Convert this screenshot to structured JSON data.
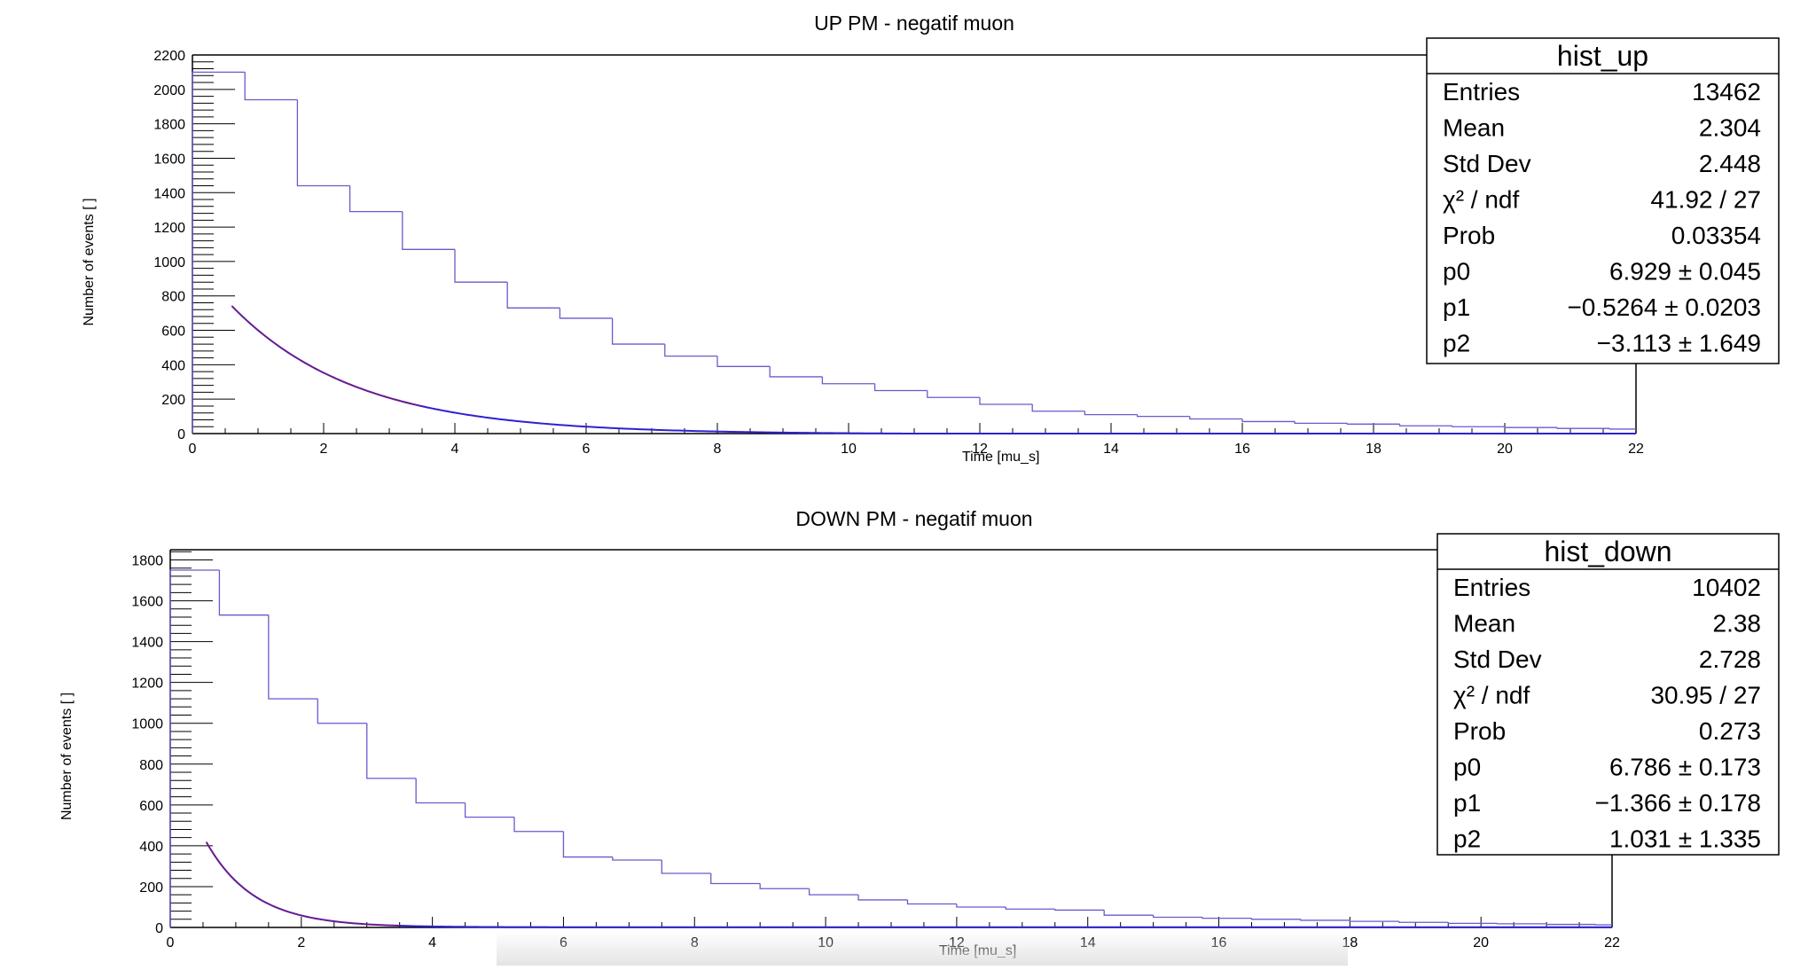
{
  "chart_data": [
    {
      "type": "histogram",
      "title": "UP PM - negatif muon",
      "xlabel": "Time [mu_s]",
      "ylabel": "Number of events [ ]",
      "xlim": [
        0,
        22
      ],
      "ylim": [
        0,
        2200
      ],
      "x_ticks": [
        0,
        2,
        4,
        6,
        8,
        10,
        12,
        14,
        16,
        18,
        20,
        22
      ],
      "y_ticks": [
        0,
        200,
        400,
        600,
        800,
        1000,
        1200,
        1400,
        1600,
        1800,
        2000,
        2200
      ],
      "series": [
        {
          "bin_width": 0.8,
          "values": [
            2100,
            1940,
            1440,
            1290,
            1070,
            880,
            730,
            670,
            520,
            450,
            390,
            330,
            290,
            250,
            210,
            170,
            130,
            110,
            100,
            85,
            70,
            60,
            55,
            45,
            40,
            35,
            30,
            26,
            22,
            20,
            18,
            15,
            13,
            11,
            10,
            9,
            8,
            7,
            6,
            5,
            5,
            4,
            4,
            3,
            3,
            3,
            3,
            3,
            2,
            2,
            2,
            2,
            2,
            2,
            2
          ]
        }
      ],
      "fit": {
        "function": "exp(p0 + p1*x) + p2",
        "p0": 6.929,
        "p1": -0.5264,
        "p2": -3.113,
        "x_start": 0.6,
        "x_end": 22
      },
      "stats_box": {
        "name": "hist_up",
        "rows": [
          {
            "label": "Entries",
            "value": "13462"
          },
          {
            "label": "Mean",
            "value": "2.304"
          },
          {
            "label": "Std Dev",
            "value": "2.448"
          },
          {
            "label": "χ² / ndf",
            "value": "41.92 / 27"
          },
          {
            "label": "Prob",
            "value": "0.03354"
          },
          {
            "label": "p0",
            "value": "6.929 ± 0.045"
          },
          {
            "label": "p1",
            "value": "−0.5264 ± 0.0203"
          },
          {
            "label": "p2",
            "value": "−3.113 ± 1.649"
          }
        ]
      }
    },
    {
      "type": "histogram",
      "title": "DOWN PM - negatif muon",
      "xlabel": "Time [mu_s]",
      "ylabel": "Number of events [ ]",
      "xlim": [
        0,
        22
      ],
      "ylim": [
        0,
        1850
      ],
      "x_ticks": [
        0,
        2,
        4,
        6,
        8,
        10,
        12,
        14,
        16,
        18,
        20,
        22
      ],
      "y_ticks": [
        0,
        200,
        400,
        600,
        800,
        1000,
        1200,
        1400,
        1600,
        1800
      ],
      "series": [
        {
          "bin_width": 0.75,
          "values": [
            1750,
            1530,
            1120,
            1000,
            730,
            610,
            540,
            470,
            345,
            330,
            265,
            215,
            190,
            160,
            135,
            115,
            100,
            90,
            85,
            60,
            50,
            45,
            40,
            35,
            30,
            25,
            20,
            18,
            15,
            13,
            11,
            10,
            9,
            8,
            7,
            6,
            6,
            5,
            5,
            4,
            4,
            4,
            3,
            3,
            3,
            3,
            3,
            2,
            2,
            2,
            2,
            2,
            2,
            2,
            2,
            2,
            2,
            2
          ]
        }
      ],
      "fit": {
        "function": "exp(p0 + p1*x) + p2",
        "p0": 6.786,
        "p1": -1.366,
        "p2": 1.031,
        "x_start": 0.55,
        "x_end": 22
      },
      "stats_box": {
        "name": "hist_down",
        "rows": [
          {
            "label": "Entries",
            "value": "10402"
          },
          {
            "label": "Mean",
            "value": "2.38"
          },
          {
            "label": "Std Dev",
            "value": "2.728"
          },
          {
            "label": "χ² / ndf",
            "value": "30.95 / 27"
          },
          {
            "label": "Prob",
            "value": "0.273"
          },
          {
            "label": "p0",
            "value": "6.786 ± 0.173"
          },
          {
            "label": "p1",
            "value": "−1.366 ± 0.178"
          },
          {
            "label": "p2",
            "value": "1.031 ± 1.335"
          }
        ]
      }
    }
  ]
}
